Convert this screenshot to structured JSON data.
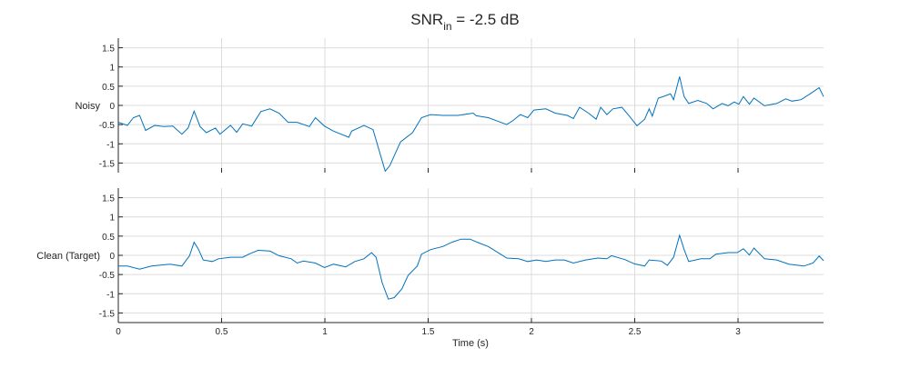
{
  "chart_data": [
    {
      "type": "line",
      "title": "SNR",
      "title_subscript": "in",
      "title_suffix": " = -2.5 dB",
      "ylabel": "Noisy",
      "xlabel": "",
      "xlim": [
        0,
        3.414
      ],
      "ylim": [
        -1.75,
        1.75
      ],
      "xticks": [
        0,
        0.5,
        1,
        1.5,
        2,
        2.5,
        3
      ],
      "xtick_labels_shown": false,
      "yticks": [
        -1.5,
        -1,
        -0.5,
        0,
        0.5,
        1,
        1.5
      ],
      "ytick_labels": [
        "-1.5",
        "-1",
        "-0.5",
        "0",
        "0.5",
        "1",
        "1.5"
      ],
      "grid": true,
      "color": "#0072BD",
      "x": [
        0,
        0.044,
        0.073,
        0.103,
        0.132,
        0.176,
        0.22,
        0.264,
        0.308,
        0.338,
        0.367,
        0.396,
        0.426,
        0.47,
        0.492,
        0.543,
        0.573,
        0.602,
        0.646,
        0.69,
        0.734,
        0.778,
        0.822,
        0.866,
        0.925,
        0.954,
        0.998,
        1.042,
        1.116,
        1.13,
        1.189,
        1.233,
        1.263,
        1.292,
        1.314,
        1.366,
        1.424,
        1.468,
        1.512,
        1.571,
        1.645,
        1.718,
        1.733,
        1.791,
        1.836,
        1.88,
        1.909,
        1.946,
        1.982,
        2.012,
        2.07,
        2.115,
        2.174,
        2.203,
        2.233,
        2.276,
        2.313,
        2.335,
        2.365,
        2.394,
        2.438,
        2.474,
        2.511,
        2.548,
        2.57,
        2.585,
        2.614,
        2.643,
        2.673,
        2.688,
        2.717,
        2.739,
        2.761,
        2.805,
        2.849,
        2.879,
        2.923,
        2.952,
        2.982,
        3.004,
        3.026,
        3.055,
        3.077,
        3.128,
        3.187,
        3.231,
        3.261,
        3.305,
        3.349,
        3.393,
        3.414
      ],
      "y": [
        -0.44,
        -0.52,
        -0.32,
        -0.26,
        -0.65,
        -0.52,
        -0.55,
        -0.54,
        -0.75,
        -0.59,
        -0.15,
        -0.55,
        -0.71,
        -0.59,
        -0.75,
        -0.52,
        -0.7,
        -0.48,
        -0.54,
        -0.16,
        -0.09,
        -0.2,
        -0.44,
        -0.44,
        -0.55,
        -0.32,
        -0.54,
        -0.67,
        -0.83,
        -0.67,
        -0.52,
        -0.63,
        -1.18,
        -1.71,
        -1.57,
        -0.95,
        -0.71,
        -0.32,
        -0.24,
        -0.26,
        -0.26,
        -0.2,
        -0.27,
        -0.32,
        -0.41,
        -0.5,
        -0.4,
        -0.24,
        -0.32,
        -0.12,
        -0.09,
        -0.2,
        -0.26,
        -0.34,
        -0.05,
        -0.2,
        -0.36,
        -0.05,
        -0.24,
        -0.09,
        -0.05,
        -0.28,
        -0.53,
        -0.36,
        -0.09,
        -0.28,
        0.19,
        0.24,
        0.3,
        0.15,
        0.75,
        0.23,
        0.05,
        0.13,
        0.05,
        -0.09,
        0.05,
        -0.01,
        0.09,
        0.03,
        0.23,
        0.03,
        0.19,
        -0.01,
        0.05,
        0.17,
        0.11,
        0.15,
        0.3,
        0.46,
        0.23
      ]
    },
    {
      "type": "line",
      "title": "",
      "ylabel": "Clean (Target)",
      "xlabel": "Time (s)",
      "xlim": [
        0,
        3.414
      ],
      "ylim": [
        -1.75,
        1.75
      ],
      "xticks": [
        0,
        0.5,
        1,
        1.5,
        2,
        2.5,
        3
      ],
      "xtick_labels": [
        "0",
        "0.5",
        "1",
        "1.5",
        "2",
        "2.5",
        "3"
      ],
      "xtick_labels_shown": true,
      "yticks": [
        -1.5,
        -1,
        -0.5,
        0,
        0.5,
        1,
        1.5
      ],
      "ytick_labels": [
        "-1.5",
        "-1",
        "-0.5",
        "0",
        "0.5",
        "1",
        "1.5"
      ],
      "grid": true,
      "color": "#0072BD",
      "x": [
        0,
        0.044,
        0.103,
        0.161,
        0.25,
        0.308,
        0.345,
        0.367,
        0.389,
        0.411,
        0.455,
        0.485,
        0.543,
        0.602,
        0.632,
        0.676,
        0.734,
        0.778,
        0.837,
        0.866,
        0.896,
        0.954,
        0.998,
        1.042,
        1.101,
        1.145,
        1.189,
        1.226,
        1.248,
        1.277,
        1.307,
        1.336,
        1.373,
        1.403,
        1.447,
        1.468,
        1.512,
        1.571,
        1.615,
        1.659,
        1.703,
        1.747,
        1.791,
        1.85,
        1.88,
        1.938,
        1.982,
        2.026,
        2.07,
        2.115,
        2.159,
        2.203,
        2.262,
        2.321,
        2.365,
        2.387,
        2.453,
        2.497,
        2.548,
        2.57,
        2.629,
        2.658,
        2.688,
        2.717,
        2.739,
        2.761,
        2.82,
        2.864,
        2.893,
        2.952,
        2.996,
        3.026,
        3.055,
        3.077,
        3.128,
        3.187,
        3.246,
        3.319,
        3.363,
        3.393,
        3.414
      ],
      "y": [
        -0.28,
        -0.28,
        -0.36,
        -0.28,
        -0.23,
        -0.28,
        -0.01,
        0.34,
        0.15,
        -0.12,
        -0.16,
        -0.09,
        -0.05,
        -0.05,
        0.03,
        0.13,
        0.11,
        -0.01,
        -0.09,
        -0.2,
        -0.15,
        -0.2,
        -0.32,
        -0.23,
        -0.3,
        -0.16,
        -0.09,
        0.07,
        -0.05,
        -0.71,
        -1.14,
        -1.1,
        -0.87,
        -0.52,
        -0.28,
        0.03,
        0.15,
        0.23,
        0.34,
        0.42,
        0.42,
        0.32,
        0.23,
        0.03,
        -0.07,
        -0.09,
        -0.16,
        -0.12,
        -0.16,
        -0.12,
        -0.12,
        -0.2,
        -0.12,
        -0.07,
        -0.09,
        -0.01,
        -0.11,
        -0.22,
        -0.28,
        -0.12,
        -0.15,
        -0.26,
        -0.05,
        0.52,
        0.15,
        -0.16,
        -0.09,
        -0.09,
        0.03,
        0.07,
        0.07,
        0.17,
        0.01,
        0.19,
        -0.09,
        -0.12,
        -0.23,
        -0.28,
        -0.2,
        -0.02,
        -0.14
      ]
    }
  ]
}
